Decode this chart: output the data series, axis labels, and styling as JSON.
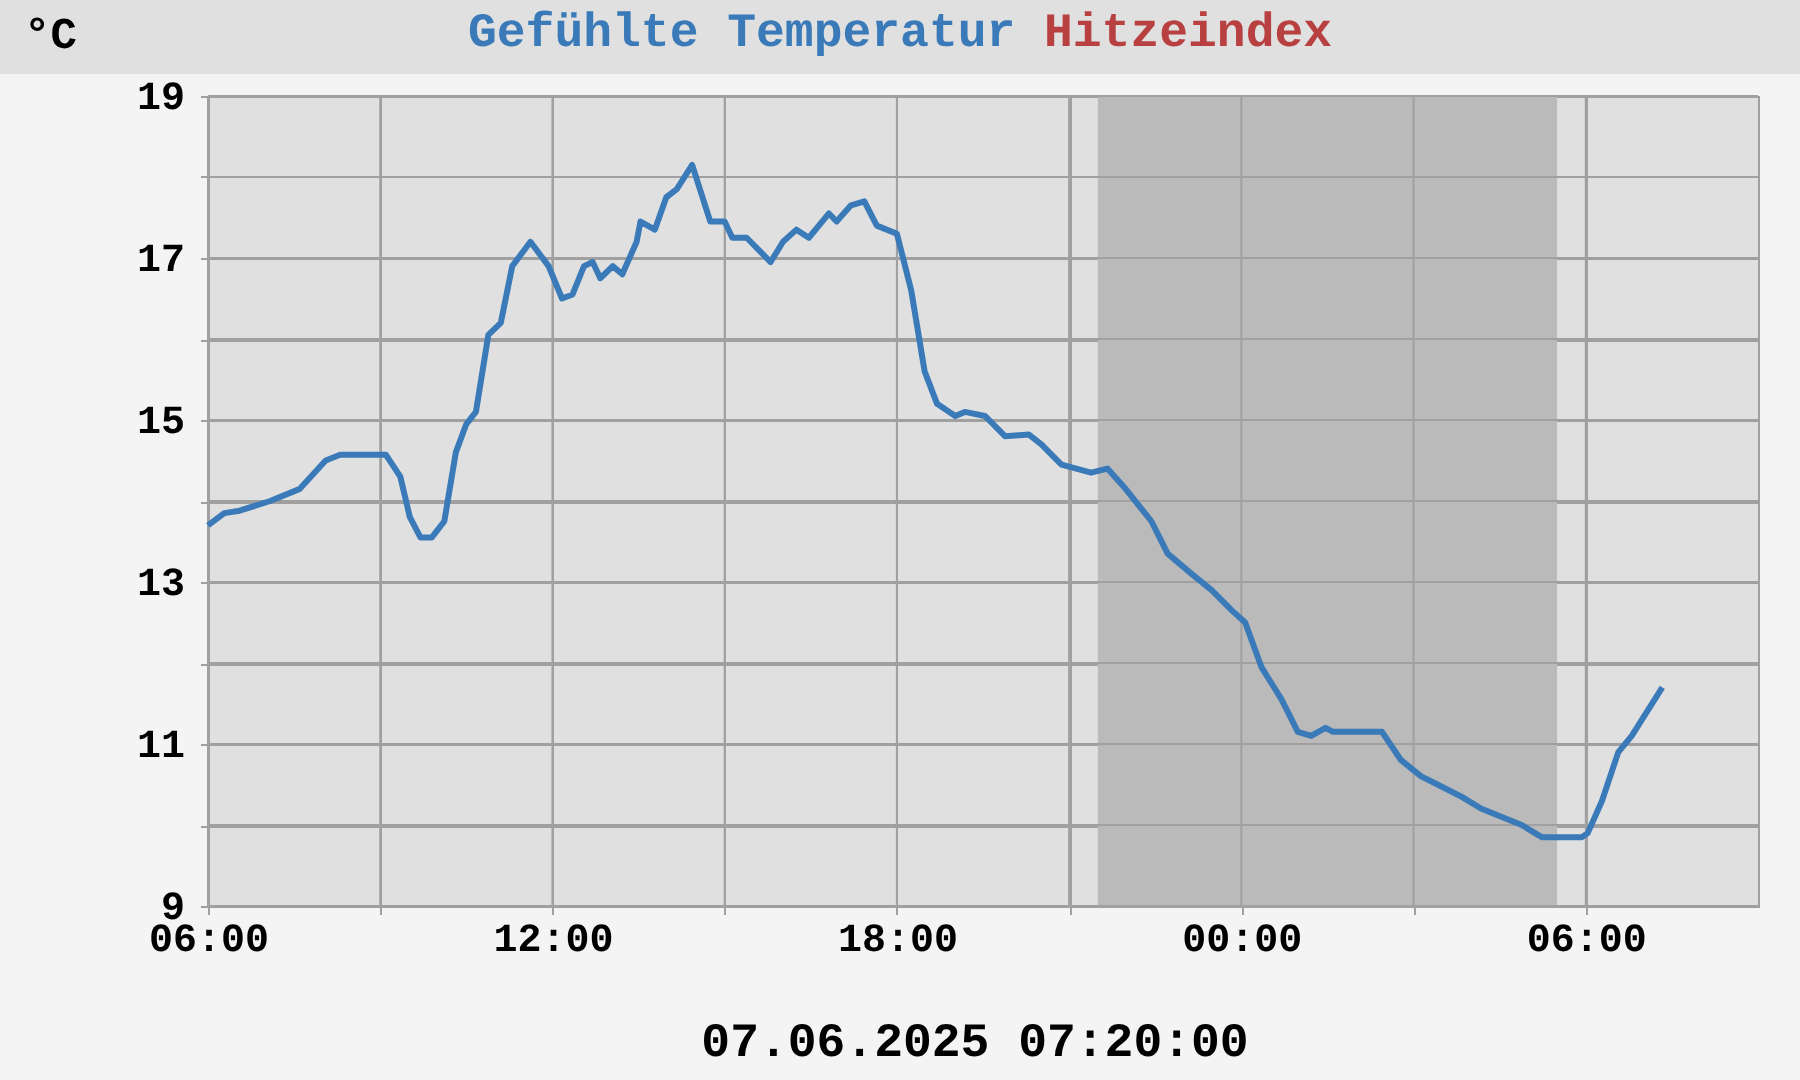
{
  "chart_data": {
    "type": "line",
    "ylabel": "°C",
    "xlabel": "07.06.2025 07:20:00",
    "x": [
      "2025-06-06T06:00",
      "2025-06-06T06:17",
      "2025-06-06T06:33",
      "2025-06-06T07:05",
      "2025-06-06T07:36",
      "2025-06-06T08:03",
      "2025-06-06T08:18",
      "2025-06-06T09:06",
      "2025-06-06T09:21",
      "2025-06-06T09:31",
      "2025-06-06T09:42",
      "2025-06-06T09:54",
      "2025-06-06T10:07",
      "2025-06-06T10:19",
      "2025-06-06T10:30",
      "2025-06-06T10:40",
      "2025-06-06T10:53",
      "2025-06-06T11:06",
      "2025-06-06T11:18",
      "2025-06-06T11:37",
      "2025-06-06T11:56",
      "2025-06-06T12:10",
      "2025-06-06T12:21",
      "2025-06-06T12:33",
      "2025-06-06T12:42",
      "2025-06-06T12:50",
      "2025-06-06T13:03",
      "2025-06-06T13:13",
      "2025-06-06T13:28",
      "2025-06-06T13:32",
      "2025-06-06T13:47",
      "2025-06-06T13:59",
      "2025-06-06T14:10",
      "2025-06-06T14:26",
      "2025-06-06T14:45",
      "2025-06-06T15:00",
      "2025-06-06T15:08",
      "2025-06-06T15:23",
      "2025-06-06T15:48",
      "2025-06-06T16:01",
      "2025-06-06T16:15",
      "2025-06-06T16:28",
      "2025-06-06T16:49",
      "2025-06-06T16:57",
      "2025-06-06T17:12",
      "2025-06-06T17:26",
      "2025-06-06T17:39",
      "2025-06-06T18:00",
      "2025-06-06T18:15",
      "2025-06-06T18:29",
      "2025-06-06T18:42",
      "2025-06-06T19:01",
      "2025-06-06T19:11",
      "2025-06-06T19:32",
      "2025-06-06T19:53",
      "2025-06-06T20:18",
      "2025-06-06T20:31",
      "2025-06-06T20:52",
      "2025-06-06T21:23",
      "2025-06-06T21:40",
      "2025-06-06T21:59",
      "2025-06-06T22:26",
      "2025-06-06T22:43",
      "2025-06-06T23:08",
      "2025-06-06T23:29",
      "2025-06-06T23:50",
      "2025-06-07T00:04",
      "2025-06-07T00:21",
      "2025-06-07T00:42",
      "2025-06-07T00:59",
      "2025-06-07T01:13",
      "2025-06-07T01:28",
      "2025-06-07T01:36",
      "2025-06-07T02:27",
      "2025-06-07T02:47",
      "2025-06-07T03:08",
      "2025-06-07T03:25",
      "2025-06-07T03:50",
      "2025-06-07T04:11",
      "2025-06-07T04:53",
      "2025-06-07T05:14",
      "2025-06-07T05:56",
      "2025-06-07T06:02",
      "2025-06-07T06:17",
      "2025-06-07T06:34",
      "2025-06-07T06:48",
      "2025-06-07T07:20"
    ],
    "series": [
      {
        "name": "Gefühlte Temperatur",
        "color": "#3a7ab8",
        "values": [
          13.7,
          13.85,
          13.88,
          14.0,
          14.15,
          14.5,
          14.57,
          14.57,
          14.3,
          13.8,
          13.55,
          13.55,
          13.75,
          14.6,
          14.95,
          15.1,
          16.05,
          16.2,
          16.9,
          17.2,
          16.9,
          16.5,
          16.55,
          16.9,
          16.95,
          16.75,
          16.9,
          16.8,
          17.2,
          17.45,
          17.35,
          17.75,
          17.85,
          18.15,
          17.45,
          17.45,
          17.25,
          17.25,
          16.95,
          17.2,
          17.35,
          17.25,
          17.55,
          17.45,
          17.65,
          17.7,
          17.4,
          17.3,
          16.6,
          15.6,
          15.2,
          15.05,
          15.1,
          15.05,
          14.8,
          14.82,
          14.7,
          14.45,
          14.35,
          14.4,
          14.15,
          13.75,
          13.35,
          13.1,
          12.9,
          12.65,
          12.5,
          11.95,
          11.55,
          11.15,
          11.1,
          11.2,
          11.15,
          11.15,
          10.8,
          10.6,
          10.5,
          10.35,
          10.2,
          10.0,
          9.85,
          9.85,
          9.9,
          10.3,
          10.9,
          11.1,
          11.7
        ]
      },
      {
        "name": "Hitzeindex",
        "color": "#b84040",
        "values": [
          null,
          null,
          null,
          null,
          null,
          null,
          null,
          null,
          null,
          null,
          null,
          null,
          null,
          null,
          null,
          null,
          null,
          null,
          null,
          null,
          null,
          null,
          null,
          null,
          null,
          null,
          null,
          null,
          null,
          null,
          null,
          null,
          null,
          null,
          null,
          null,
          null,
          null,
          null,
          null,
          null,
          null,
          null,
          null,
          null,
          null,
          null,
          null,
          null,
          null,
          null,
          null,
          null,
          null,
          null,
          null,
          null,
          null,
          null,
          null,
          null,
          null,
          null,
          null,
          null,
          null,
          null,
          null,
          null,
          null,
          null,
          null,
          null,
          null,
          null,
          null,
          null,
          null,
          null,
          null,
          null,
          null,
          null,
          null,
          null,
          null,
          null
        ]
      }
    ],
    "xlim": [
      "2025-06-06T06:00",
      "2025-06-07T09:00"
    ],
    "xticks": [
      {
        "value": "2025-06-06T06:00",
        "label": "06:00"
      },
      {
        "value": "2025-06-06T09:00",
        "label": null
      },
      {
        "value": "2025-06-06T12:00",
        "label": "12:00"
      },
      {
        "value": "2025-06-06T15:00",
        "label": null
      },
      {
        "value": "2025-06-06T18:00",
        "label": "18:00"
      },
      {
        "value": "2025-06-06T21:00",
        "label": null
      },
      {
        "value": "2025-06-07T00:00",
        "label": "00:00"
      },
      {
        "value": "2025-06-07T03:00",
        "label": null
      },
      {
        "value": "2025-06-07T06:00",
        "label": "06:00"
      }
    ],
    "ylim": [
      9,
      19
    ],
    "yticks": [
      9,
      {
        "value": 10,
        "label": null
      },
      11,
      {
        "value": 12,
        "label": null
      },
      13,
      {
        "value": 14,
        "label": null
      },
      15,
      {
        "value": 16,
        "label": null
      },
      17,
      {
        "value": 18,
        "label": null
      },
      19
    ],
    "bands": [
      {
        "axis": "x",
        "from": "2025-06-06T21:30",
        "to": "2025-06-07T05:30",
        "color": "#bababa"
      }
    ],
    "grid": true,
    "legend": "top",
    "marker": "none",
    "line_style": "solid"
  }
}
